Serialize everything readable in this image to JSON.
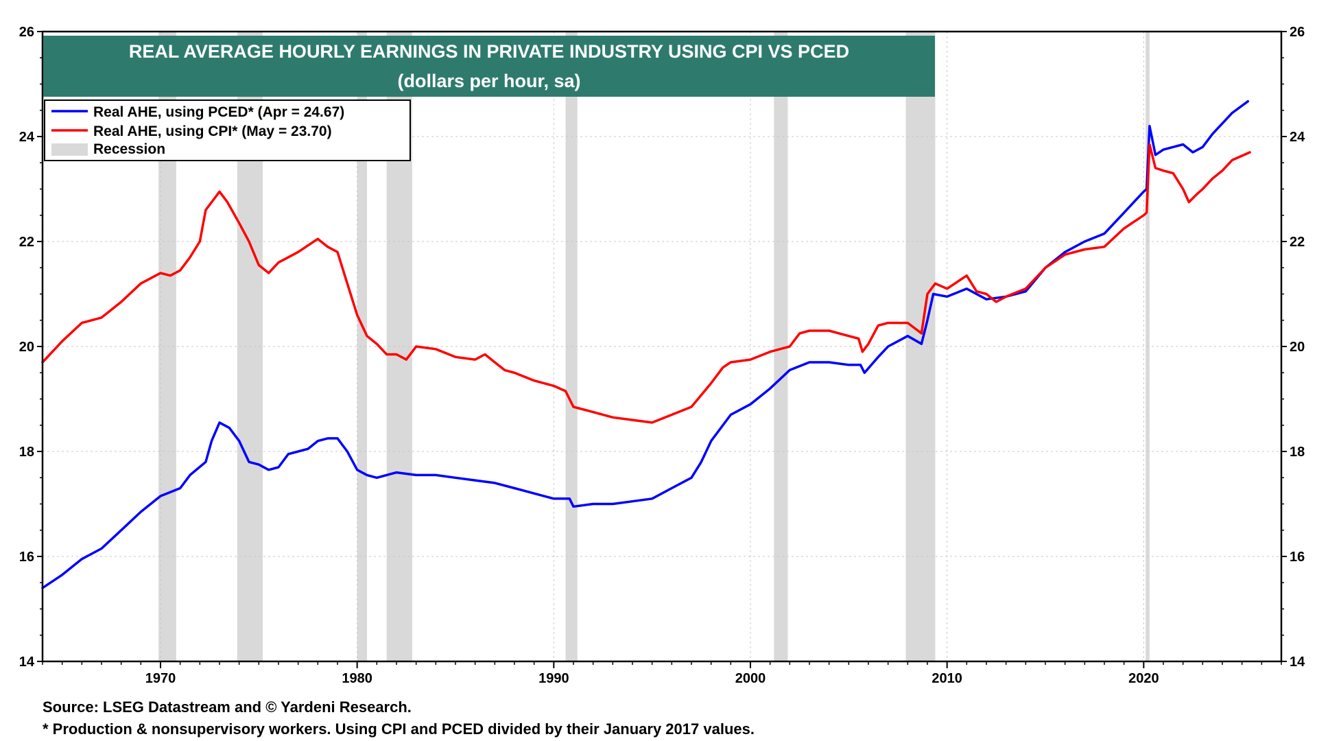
{
  "chart_data": {
    "type": "line",
    "title": "REAL AVERAGE HOURLY EARNINGS IN PRIVATE INDUSTRY USING CPI VS PCED",
    "subtitle": "(dollars per hour, sa)",
    "xlim": [
      1964,
      2027
    ],
    "ylim": [
      14,
      26
    ],
    "y_ticks": [
      14,
      16,
      18,
      20,
      22,
      24,
      26
    ],
    "x_ticks": [
      1970,
      1980,
      1990,
      2000,
      2010,
      2020
    ],
    "grid": true,
    "legend_position": "top-left",
    "recessions": [
      [
        1969.9,
        1970.8
      ],
      [
        1973.9,
        1975.2
      ],
      [
        1980.0,
        1980.5
      ],
      [
        1981.5,
        1982.8
      ],
      [
        1990.6,
        1991.2
      ],
      [
        2001.2,
        2001.9
      ],
      [
        2007.9,
        2009.4
      ],
      [
        2020.1,
        2020.3
      ]
    ],
    "series": [
      {
        "name": "Real AHE, using PCED* (Apr = 24.67)",
        "color": "#0000ff",
        "points": [
          [
            1964.0,
            15.4
          ],
          [
            1965.0,
            15.65
          ],
          [
            1966.0,
            15.95
          ],
          [
            1967.0,
            16.15
          ],
          [
            1968.0,
            16.5
          ],
          [
            1969.0,
            16.85
          ],
          [
            1970.0,
            17.15
          ],
          [
            1971.0,
            17.3
          ],
          [
            1971.5,
            17.55
          ],
          [
            1972.3,
            17.8
          ],
          [
            1972.6,
            18.2
          ],
          [
            1973.0,
            18.55
          ],
          [
            1973.5,
            18.45
          ],
          [
            1974.0,
            18.2
          ],
          [
            1974.5,
            17.8
          ],
          [
            1975.0,
            17.75
          ],
          [
            1975.5,
            17.65
          ],
          [
            1976.0,
            17.7
          ],
          [
            1976.5,
            17.95
          ],
          [
            1977.0,
            18.0
          ],
          [
            1977.5,
            18.05
          ],
          [
            1978.0,
            18.2
          ],
          [
            1978.5,
            18.25
          ],
          [
            1979.0,
            18.25
          ],
          [
            1979.5,
            18.0
          ],
          [
            1980.0,
            17.65
          ],
          [
            1980.5,
            17.55
          ],
          [
            1981.0,
            17.5
          ],
          [
            1982.0,
            17.6
          ],
          [
            1983.0,
            17.55
          ],
          [
            1984.0,
            17.55
          ],
          [
            1985.0,
            17.5
          ],
          [
            1986.0,
            17.45
          ],
          [
            1987.0,
            17.4
          ],
          [
            1988.0,
            17.3
          ],
          [
            1989.0,
            17.2
          ],
          [
            1990.0,
            17.1
          ],
          [
            1990.8,
            17.1
          ],
          [
            1991.0,
            16.95
          ],
          [
            1992.0,
            17.0
          ],
          [
            1993.0,
            17.0
          ],
          [
            1994.0,
            17.05
          ],
          [
            1995.0,
            17.1
          ],
          [
            1996.0,
            17.3
          ],
          [
            1997.0,
            17.5
          ],
          [
            1997.5,
            17.8
          ],
          [
            1998.0,
            18.2
          ],
          [
            1999.0,
            18.7
          ],
          [
            2000.0,
            18.9
          ],
          [
            2001.0,
            19.2
          ],
          [
            2002.0,
            19.55
          ],
          [
            2003.0,
            19.7
          ],
          [
            2004.0,
            19.7
          ],
          [
            2005.0,
            19.65
          ],
          [
            2005.6,
            19.65
          ],
          [
            2005.8,
            19.5
          ],
          [
            2006.5,
            19.8
          ],
          [
            2007.0,
            20.0
          ],
          [
            2008.0,
            20.2
          ],
          [
            2008.7,
            20.05
          ],
          [
            2009.0,
            20.5
          ],
          [
            2009.3,
            21.0
          ],
          [
            2010.0,
            20.95
          ],
          [
            2011.0,
            21.1
          ],
          [
            2012.0,
            20.9
          ],
          [
            2013.0,
            20.95
          ],
          [
            2014.0,
            21.05
          ],
          [
            2015.0,
            21.5
          ],
          [
            2016.0,
            21.8
          ],
          [
            2017.0,
            22.0
          ],
          [
            2018.0,
            22.15
          ],
          [
            2019.0,
            22.55
          ],
          [
            2020.0,
            22.95
          ],
          [
            2020.15,
            23.0
          ],
          [
            2020.3,
            24.2
          ],
          [
            2020.6,
            23.65
          ],
          [
            2021.0,
            23.75
          ],
          [
            2021.5,
            23.8
          ],
          [
            2022.0,
            23.85
          ],
          [
            2022.5,
            23.7
          ],
          [
            2023.0,
            23.8
          ],
          [
            2023.5,
            24.05
          ],
          [
            2024.0,
            24.25
          ],
          [
            2024.5,
            24.45
          ],
          [
            2025.3,
            24.67
          ]
        ]
      },
      {
        "name": "Real AHE, using CPI* (May = 23.70)",
        "color": "#ff0000",
        "points": [
          [
            1964.0,
            19.7
          ],
          [
            1965.0,
            20.1
          ],
          [
            1966.0,
            20.45
          ],
          [
            1967.0,
            20.55
          ],
          [
            1968.0,
            20.85
          ],
          [
            1969.0,
            21.2
          ],
          [
            1970.0,
            21.4
          ],
          [
            1970.5,
            21.35
          ],
          [
            1971.0,
            21.45
          ],
          [
            1971.5,
            21.7
          ],
          [
            1972.0,
            22.0
          ],
          [
            1972.3,
            22.6
          ],
          [
            1972.8,
            22.85
          ],
          [
            1973.0,
            22.95
          ],
          [
            1973.4,
            22.75
          ],
          [
            1974.0,
            22.35
          ],
          [
            1974.5,
            22.0
          ],
          [
            1975.0,
            21.55
          ],
          [
            1975.5,
            21.4
          ],
          [
            1976.0,
            21.6
          ],
          [
            1977.0,
            21.8
          ],
          [
            1978.0,
            22.05
          ],
          [
            1978.5,
            21.9
          ],
          [
            1979.0,
            21.8
          ],
          [
            1979.5,
            21.2
          ],
          [
            1980.0,
            20.6
          ],
          [
            1980.5,
            20.2
          ],
          [
            1981.0,
            20.05
          ],
          [
            1981.5,
            19.85
          ],
          [
            1982.0,
            19.85
          ],
          [
            1982.5,
            19.75
          ],
          [
            1983.0,
            20.0
          ],
          [
            1984.0,
            19.95
          ],
          [
            1985.0,
            19.8
          ],
          [
            1986.0,
            19.75
          ],
          [
            1986.5,
            19.85
          ],
          [
            1987.0,
            19.7
          ],
          [
            1987.5,
            19.55
          ],
          [
            1988.0,
            19.5
          ],
          [
            1989.0,
            19.35
          ],
          [
            1990.0,
            19.25
          ],
          [
            1990.6,
            19.15
          ],
          [
            1991.0,
            18.85
          ],
          [
            1992.0,
            18.75
          ],
          [
            1993.0,
            18.65
          ],
          [
            1994.0,
            18.6
          ],
          [
            1995.0,
            18.55
          ],
          [
            1996.0,
            18.7
          ],
          [
            1997.0,
            18.85
          ],
          [
            1998.0,
            19.3
          ],
          [
            1998.6,
            19.6
          ],
          [
            1999.0,
            19.7
          ],
          [
            2000.0,
            19.75
          ],
          [
            2001.0,
            19.9
          ],
          [
            2002.0,
            20.0
          ],
          [
            2002.5,
            20.25
          ],
          [
            2003.0,
            20.3
          ],
          [
            2004.0,
            20.3
          ],
          [
            2005.0,
            20.2
          ],
          [
            2005.5,
            20.15
          ],
          [
            2005.7,
            19.9
          ],
          [
            2006.0,
            20.05
          ],
          [
            2006.5,
            20.4
          ],
          [
            2007.0,
            20.45
          ],
          [
            2008.0,
            20.45
          ],
          [
            2008.7,
            20.25
          ],
          [
            2009.0,
            21.0
          ],
          [
            2009.4,
            21.2
          ],
          [
            2010.0,
            21.1
          ],
          [
            2011.0,
            21.35
          ],
          [
            2011.5,
            21.05
          ],
          [
            2012.0,
            21.0
          ],
          [
            2012.5,
            20.85
          ],
          [
            2013.0,
            20.95
          ],
          [
            2014.0,
            21.1
          ],
          [
            2015.0,
            21.5
          ],
          [
            2016.0,
            21.75
          ],
          [
            2017.0,
            21.85
          ],
          [
            2018.0,
            21.9
          ],
          [
            2019.0,
            22.25
          ],
          [
            2020.0,
            22.5
          ],
          [
            2020.15,
            22.55
          ],
          [
            2020.3,
            23.85
          ],
          [
            2020.6,
            23.4
          ],
          [
            2021.0,
            23.35
          ],
          [
            2021.5,
            23.3
          ],
          [
            2022.0,
            23.0
          ],
          [
            2022.3,
            22.75
          ],
          [
            2022.7,
            22.9
          ],
          [
            2023.0,
            23.0
          ],
          [
            2023.5,
            23.2
          ],
          [
            2024.0,
            23.35
          ],
          [
            2024.5,
            23.55
          ],
          [
            2025.4,
            23.7
          ]
        ]
      }
    ]
  },
  "legend": {
    "items": [
      {
        "label": "Real AHE, using PCED* (Apr = 24.67)",
        "color": "#0000ff",
        "kind": "line"
      },
      {
        "label": "Real AHE, using CPI* (May = 23.70)",
        "color": "#ff0000",
        "kind": "line"
      },
      {
        "label": "Recession",
        "color": "#d9d9d9",
        "kind": "box"
      }
    ]
  },
  "colors": {
    "title_bg": "#2e7b6e",
    "recession": "#d9d9d9",
    "grid": "#c8c8c8"
  },
  "footnotes": {
    "source": "Source: LSEG Datastream and © Yardeni Research.",
    "note": "* Production & nonsupervisory workers. Using CPI and PCED divided by their January 2017 values."
  }
}
